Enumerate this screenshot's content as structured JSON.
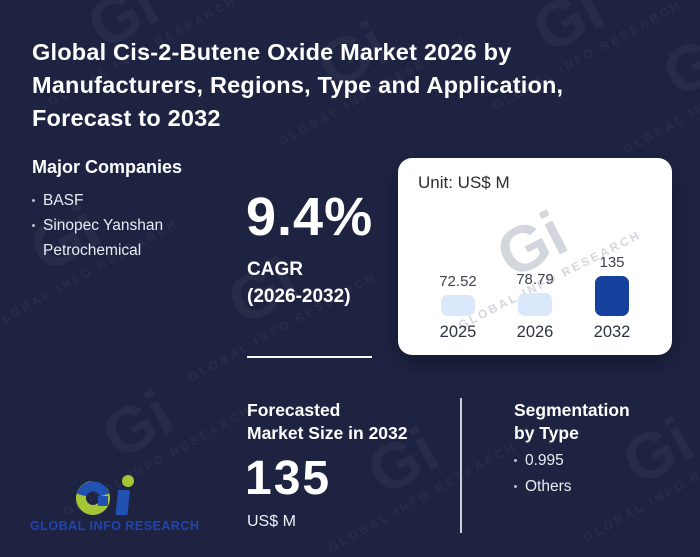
{
  "brand": {
    "name": "GLOBAL INFO RESEARCH",
    "monogram": "Gi",
    "green": "#a4c636",
    "blue": "#2151b2",
    "text_blue": "#1f45b0"
  },
  "header": {
    "title": "Global Cis-2-Butene Oxide Market 2026 by Manufacturers, Regions, Type and Application, Forecast to 2032",
    "title_lines": [
      "Global Cis-2-Butene Oxide Market 2026 by",
      "Manufacturers, Regions, Type and Application,",
      "Forecast to 2032"
    ]
  },
  "major_companies": {
    "heading": "Major Companies",
    "items": [
      "BASF",
      "Sinopec Yanshan Petrochemical"
    ]
  },
  "cagr": {
    "value": "9.4%",
    "label_line1": "CAGR",
    "label_line2": "(2026-2032)"
  },
  "chart_card": {
    "unit_label": "Unit: US$ M"
  },
  "chart_data": {
    "type": "bar",
    "title": "",
    "unit": "US$ M",
    "unit_label": "Unit: US$ M",
    "categories": [
      "2025",
      "2026",
      "2032"
    ],
    "values": [
      72.52,
      78.79,
      135
    ],
    "data_labels": [
      "72.52",
      "78.79",
      "135"
    ],
    "bar_colors": [
      "#d9e8fa",
      "#d9e8fa",
      "#16419e"
    ],
    "ylim": [
      0,
      150
    ],
    "grid": false,
    "legend": false
  },
  "forecast": {
    "heading_line1": "Forecasted",
    "heading_line2": "Market Size in 2032",
    "value": "135",
    "unit": "US$ M"
  },
  "segmentation": {
    "heading_line1": "Segmentation",
    "heading_line2": "by Type",
    "items": [
      "0.995",
      "Others"
    ]
  },
  "colors": {
    "background": "#1d2341",
    "card_background": "#ffffff",
    "text_primary": "#ffffff",
    "bar_light": "#d9e8fa",
    "bar_dark": "#16419e"
  }
}
